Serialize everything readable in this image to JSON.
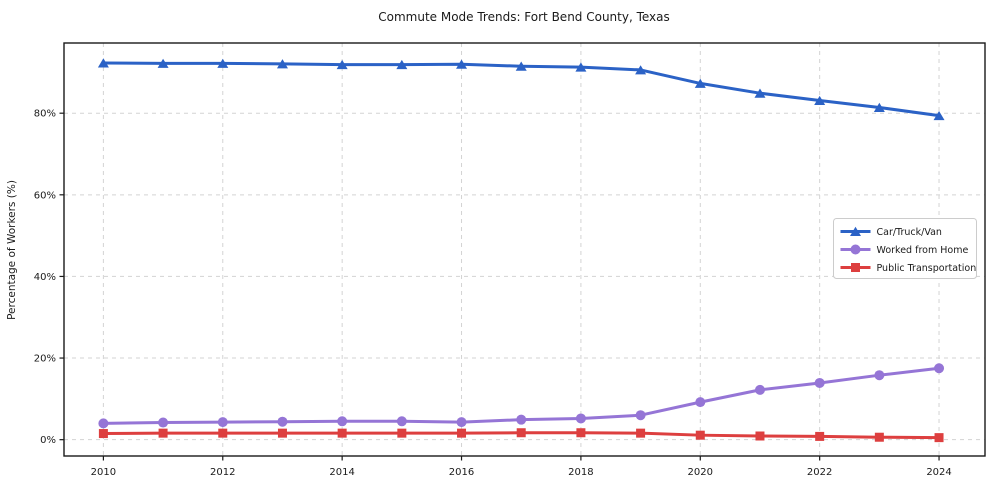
{
  "figure": {
    "title": "Commute Mode Trends: Fort Bend County, Texas",
    "ylabel": "Percentage of Workers (%)"
  },
  "chart_data": {
    "type": "line",
    "title": "Commute Mode Trends: Fort Bend County, Texas",
    "xlabel": "",
    "ylabel": "Percentage of Workers (%)",
    "x": [
      2010,
      2011,
      2012,
      2013,
      2014,
      2015,
      2016,
      2017,
      2018,
      2019,
      2020,
      2021,
      2022,
      2023,
      2024
    ],
    "series": [
      {
        "name": "Car/Truck/Van",
        "color": "#2b62c6",
        "marker": "triangle",
        "values": [
          92.3,
          92.2,
          92.2,
          92.1,
          91.9,
          91.9,
          92.0,
          91.5,
          91.3,
          90.6,
          87.3,
          84.9,
          83.1,
          81.4,
          79.4
        ]
      },
      {
        "name": "Worked from Home",
        "color": "#9575d6",
        "marker": "circle",
        "values": [
          4.0,
          4.2,
          4.3,
          4.4,
          4.5,
          4.5,
          4.3,
          4.9,
          5.2,
          6.0,
          9.2,
          12.2,
          13.9,
          15.8,
          17.5
        ]
      },
      {
        "name": "Public Transportation",
        "color": "#dd3f3f",
        "marker": "square",
        "values": [
          1.5,
          1.6,
          1.6,
          1.6,
          1.6,
          1.6,
          1.6,
          1.7,
          1.7,
          1.6,
          1.1,
          0.9,
          0.8,
          0.6,
          0.5
        ]
      }
    ],
    "xticks": {
      "values": [
        2010,
        2012,
        2014,
        2016,
        2018,
        2020,
        2022,
        2024
      ],
      "labels": [
        "2010",
        "2012",
        "2014",
        "2016",
        "2018",
        "2020",
        "2022",
        "2024"
      ]
    },
    "yticks": {
      "values": [
        0,
        20,
        40,
        60,
        80
      ],
      "labels": [
        "0%",
        "20%",
        "40%",
        "60%",
        "80%"
      ]
    },
    "xlim": [
      2009.34,
      2024.77
    ],
    "ylim": [
      -4.0,
      97.2
    ],
    "grid": true,
    "legend_position": "center-right",
    "colors": {
      "grid": "#d3d3d3",
      "spine": "#1a1a1a",
      "legend_border": "#cccccc",
      "background": "#ffffff"
    }
  }
}
